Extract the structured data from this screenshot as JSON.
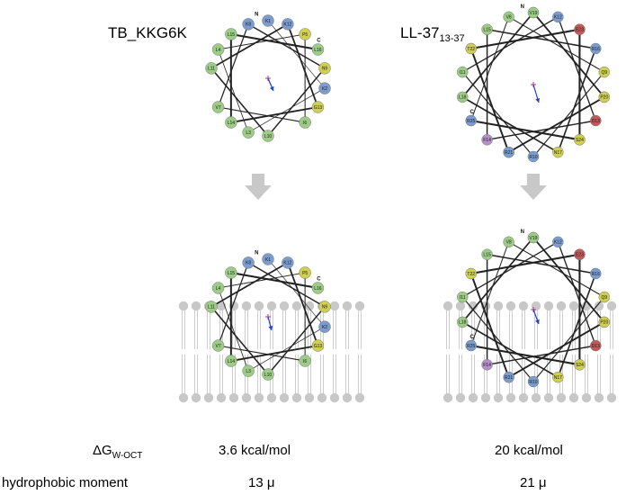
{
  "colors": {
    "positive": "#7a9ccf",
    "hydrophobic": "#9ccc86",
    "special": "#cfcf52",
    "negative": "#c25a5a",
    "polar": "#b48fc8",
    "vector": "#1f3fd0",
    "center": "#c03070",
    "arrow": "#c8c8c8",
    "membrane": "#c8c8c8"
  },
  "panels": [
    {
      "title": "TB_KKG6K",
      "title_sub": "",
      "dg_value": "3.6 kcal/mol",
      "moment_value": "13 μ",
      "n_label": "N",
      "c_label": "C",
      "residues": [
        {
          "label": "K1",
          "cls": "positive"
        },
        {
          "label": "K2",
          "cls": "positive"
        },
        {
          "label": "L3",
          "cls": "hydrophobic"
        },
        {
          "label": "L4",
          "cls": "hydrophobic"
        },
        {
          "label": "P5",
          "cls": "special"
        },
        {
          "label": "I6",
          "cls": "hydrophobic"
        },
        {
          "label": "V7",
          "cls": "hydrophobic"
        },
        {
          "label": "K8",
          "cls": "positive"
        },
        {
          "label": "N9",
          "cls": "special"
        },
        {
          "label": "L10",
          "cls": "hydrophobic"
        },
        {
          "label": "L11",
          "cls": "hydrophobic"
        },
        {
          "label": "K12",
          "cls": "positive"
        },
        {
          "label": "G13",
          "cls": "special"
        },
        {
          "label": "L14",
          "cls": "hydrophobic"
        },
        {
          "label": "L15",
          "cls": "hydrophobic"
        },
        {
          "label": "L16",
          "cls": "hydrophobic"
        }
      ]
    },
    {
      "title": "LL-37",
      "title_sub": "13-37",
      "dg_value": "20 kcal/mol",
      "moment_value": "21 μ",
      "n_label": "N",
      "c_label": "C",
      "residues": [
        {
          "label": "I1",
          "cls": "hydrophobic"
        },
        {
          "label": "K2",
          "cls": "positive"
        },
        {
          "label": "E3",
          "cls": "negative"
        },
        {
          "label": "F4",
          "cls": "polar"
        },
        {
          "label": "K5",
          "cls": "positive"
        },
        {
          "label": "R6",
          "cls": "positive"
        },
        {
          "label": "I7",
          "cls": "hydrophobic"
        },
        {
          "label": "V8",
          "cls": "hydrophobic"
        },
        {
          "label": "Q9",
          "cls": "special"
        },
        {
          "label": "R10",
          "cls": "positive"
        },
        {
          "label": "I11",
          "cls": "hydrophobic"
        },
        {
          "label": "K12",
          "cls": "positive"
        },
        {
          "label": "D13",
          "cls": "negative"
        },
        {
          "label": "F14",
          "cls": "polar"
        },
        {
          "label": "L15",
          "cls": "hydrophobic"
        },
        {
          "label": "R16",
          "cls": "positive"
        },
        {
          "label": "N17",
          "cls": "special"
        },
        {
          "label": "L18",
          "cls": "hydrophobic"
        },
        {
          "label": "V19",
          "cls": "hydrophobic"
        },
        {
          "label": "P20",
          "cls": "special"
        },
        {
          "label": "R21",
          "cls": "positive"
        },
        {
          "label": "T22",
          "cls": "special"
        },
        {
          "label": "E23",
          "cls": "negative"
        },
        {
          "label": "S24",
          "cls": "special"
        },
        {
          "label": "R25",
          "cls": "positive"
        }
      ]
    }
  ],
  "rows": {
    "dg_label": "ΔG",
    "dg_sub": "W-OCT",
    "moment_label": "hydrophobic moment"
  }
}
